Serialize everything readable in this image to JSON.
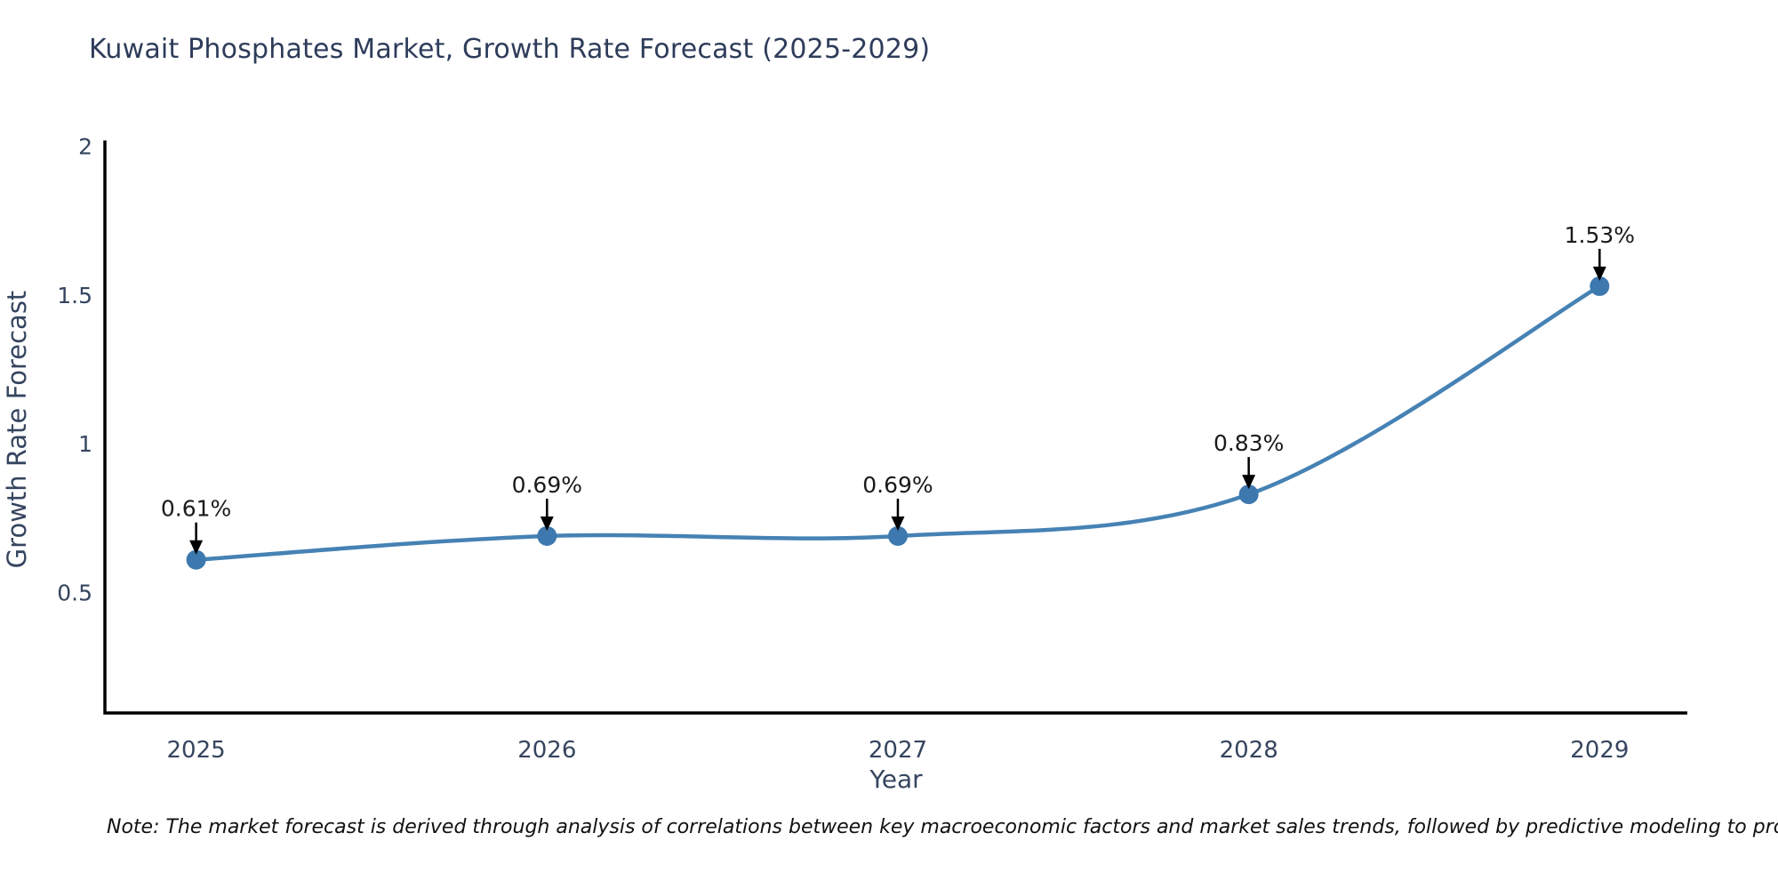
{
  "title": "Kuwait Phosphates Market, Growth Rate Forecast (2025-2029)",
  "note": "Note: The market forecast is derived through analysis of correlations between key macroeconomic factors and market sales trends, followed by predictive modeling to project future sales",
  "chart_data": {
    "type": "line",
    "title": "Kuwait Phosphates Market, Growth Rate Forecast (2025-2029)",
    "xlabel": "Year",
    "ylabel": "Growth Rate Forecast",
    "x": [
      2025,
      2026,
      2027,
      2028,
      2029
    ],
    "values": [
      0.61,
      0.69,
      0.69,
      0.83,
      1.53
    ],
    "point_labels": [
      "0.61%",
      "0.69%",
      "0.69%",
      "0.83%",
      "1.53%"
    ],
    "xtick_labels": [
      "2025",
      "2026",
      "2027",
      "2028",
      "2029"
    ],
    "yticks": [
      0.5,
      1,
      1.5,
      2
    ],
    "ytick_labels": [
      "0.5",
      "1",
      "1.5",
      "2"
    ],
    "xlim": [
      2024.74,
      2029.25
    ],
    "ylim": [
      0.095,
      2.02
    ],
    "grid": false,
    "legend": "none",
    "line_color": "#4682b4",
    "marker_color": "#3d78ae",
    "axis_color": "#000000",
    "tick_color": "#36455f",
    "annotation_color": "#1a1a1a"
  }
}
